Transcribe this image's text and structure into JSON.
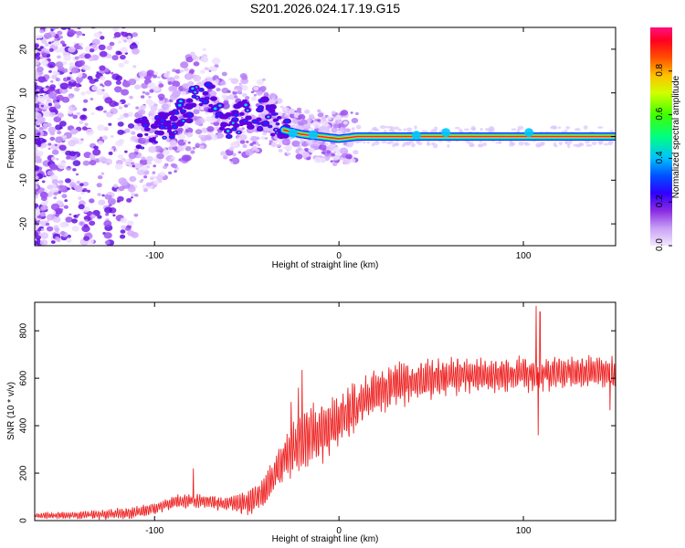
{
  "title": "S201.2026.024.17.19.G15",
  "colors": {
    "snr_line": "#ee2222",
    "trace_core": "#ff2244",
    "trace_mid": "#33ff55",
    "trace_edge": "#1a2bff",
    "scatter": "#9b4ff0"
  },
  "chart_data": [
    {
      "type": "heatmap",
      "name": "spectrogram",
      "xlabel": "Height of straight line (km)",
      "ylabel": "Frequency (Hz)",
      "xlim": [
        -165,
        150
      ],
      "ylim": [
        -25,
        25
      ],
      "xticks": [
        -100,
        0,
        100
      ],
      "yticks": [
        -20,
        -10,
        0,
        10,
        20
      ],
      "colorbar": {
        "label": "Normalized spectral amplitude",
        "range": [
          0,
          1
        ],
        "ticks": [
          "0.0",
          "0.2",
          "0.4",
          "0.6",
          "0.8"
        ],
        "tick_values": [
          0,
          0.2,
          0.4,
          0.6,
          0.8
        ],
        "colormap": [
          "#f0e0ff",
          "#b070f0",
          "#6000e0",
          "#0000ff",
          "#00d0ff",
          "#00ff60",
          "#ffff00",
          "#ff8000",
          "#ff0000",
          "#ff1070"
        ]
      },
      "trace": {
        "description": "dominant frequency ridge",
        "x": [
          -108,
          -100,
          -90,
          -80,
          -70,
          -60,
          -50,
          -40,
          -30,
          -20,
          -10,
          0,
          10,
          30,
          60,
          100,
          150
        ],
        "y": [
          0.5,
          1.5,
          3.5,
          7.5,
          9.5,
          3.0,
          5.0,
          5.0,
          1.5,
          0.5,
          0.0,
          -0.5,
          0.0,
          0.0,
          0.0,
          0.0,
          0.0
        ]
      }
    },
    {
      "type": "line",
      "name": "snr",
      "xlabel": "Height of straight line (km)",
      "ylabel": "SNR (10 * v/v)",
      "xlim": [
        -165,
        150
      ],
      "ylim": [
        0,
        920
      ],
      "xticks": [
        -100,
        0,
        100
      ],
      "yticks": [
        0,
        200,
        400,
        600,
        800
      ],
      "envelope": {
        "x": [
          -165,
          -130,
          -110,
          -100,
          -90,
          -80,
          -70,
          -60,
          -50,
          -40,
          -35,
          -30,
          -25,
          -20,
          -15,
          -10,
          -5,
          0,
          5,
          10,
          15,
          20,
          30,
          40,
          50,
          60,
          70,
          80,
          90,
          100,
          110,
          120,
          130,
          140,
          150
        ],
        "y": [
          20,
          25,
          35,
          50,
          75,
          85,
          80,
          70,
          75,
          120,
          200,
          260,
          300,
          330,
          360,
          380,
          400,
          420,
          450,
          480,
          510,
          530,
          570,
          590,
          600,
          605,
          610,
          615,
          620,
          620,
          620,
          625,
          630,
          630,
          620
        ]
      },
      "amplitude": {
        "x": [
          -165,
          -100,
          -60,
          -40,
          -30,
          -20,
          -10,
          0,
          20,
          60,
          150
        ],
        "y": [
          10,
          25,
          30,
          60,
          100,
          110,
          120,
          110,
          90,
          70,
          60
        ]
      },
      "spikes": [
        {
          "x": -79,
          "y": 220
        },
        {
          "x": -22,
          "y": 560
        },
        {
          "x": -20,
          "y": 635
        },
        {
          "x": -26,
          "y": 500
        },
        {
          "x": 107,
          "y": 905
        },
        {
          "x": 109,
          "y": 880
        },
        {
          "x": 108,
          "y": 360
        },
        {
          "x": 147,
          "y": 465
        }
      ]
    }
  ]
}
